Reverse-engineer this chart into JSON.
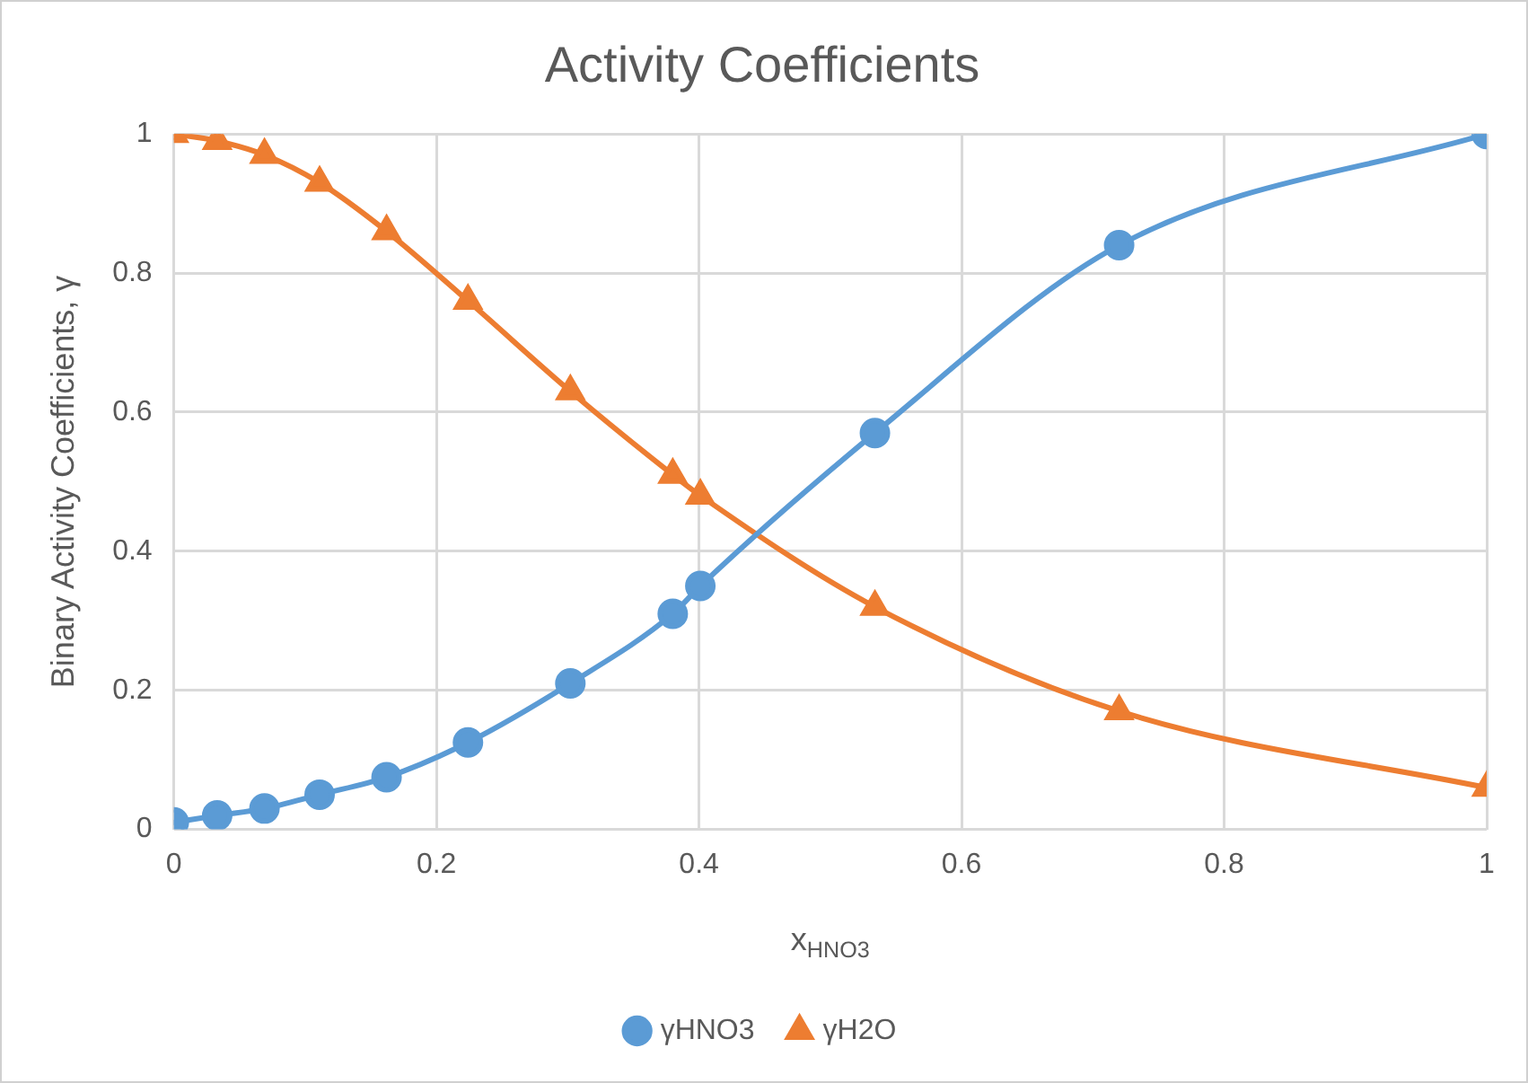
{
  "chart_data": {
    "type": "line",
    "title": "Activity Coefficients",
    "xlabel": "x$_{HNO3}$",
    "ylabel": "Binary Activity Coefficients, γ",
    "xlim": [
      0,
      1
    ],
    "xticks": [
      0,
      0.2,
      0.4,
      0.6,
      0.8,
      1
    ],
    "ylim": [
      0,
      1
    ],
    "yticks": [
      0,
      0.2,
      0.4,
      0.6,
      0.8,
      1
    ],
    "grid": true,
    "legend": "bottom",
    "line_style": "solid",
    "series": [
      {
        "name": "γHNO3",
        "color": "#5b9bd5",
        "marker": "circle",
        "x": [
          0,
          0.033,
          0.069,
          0.111,
          0.162,
          0.224,
          0.302,
          0.38,
          0.401,
          0.534,
          0.72,
          1
        ],
        "values": [
          0.01,
          0.02,
          0.03,
          0.05,
          0.075,
          0.125,
          0.21,
          0.31,
          0.35,
          0.57,
          0.84,
          1
        ]
      },
      {
        "name": "γH2O",
        "color": "#ed7d31",
        "marker": "triangle",
        "x": [
          0,
          0.033,
          0.069,
          0.111,
          0.162,
          0.224,
          0.302,
          0.38,
          0.401,
          0.534,
          0.72,
          1
        ],
        "values": [
          1,
          0.99,
          0.97,
          0.93,
          0.86,
          0.76,
          0.63,
          0.51,
          0.48,
          0.32,
          0.17,
          0.06
        ]
      }
    ]
  }
}
